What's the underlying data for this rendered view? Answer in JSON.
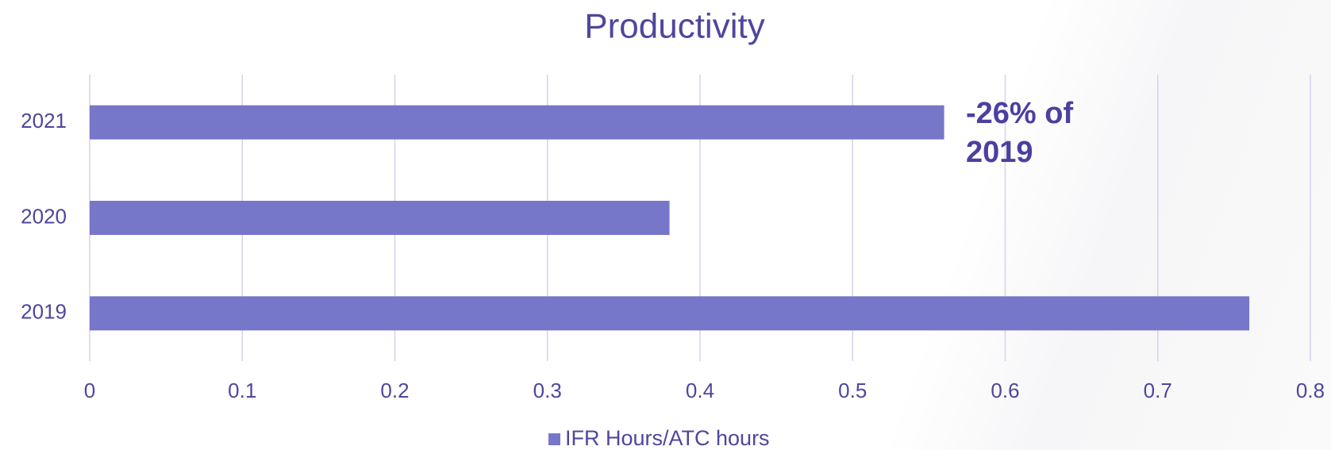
{
  "chart_data": {
    "type": "hbar",
    "title": "Productivity",
    "categories": [
      "2019",
      "2020",
      "2021"
    ],
    "series": [
      {
        "name": "IFR Hours/ATC hours",
        "color": "#7677c9",
        "values": [
          0.76,
          0.38,
          0.56
        ]
      }
    ],
    "xlim": [
      0,
      0.8
    ],
    "xticks": [
      0,
      0.1,
      0.2,
      0.3,
      0.4,
      0.5,
      0.6,
      0.7,
      0.8
    ],
    "grid": true,
    "annotation": "-26% of 2019",
    "legend": "bottom"
  }
}
